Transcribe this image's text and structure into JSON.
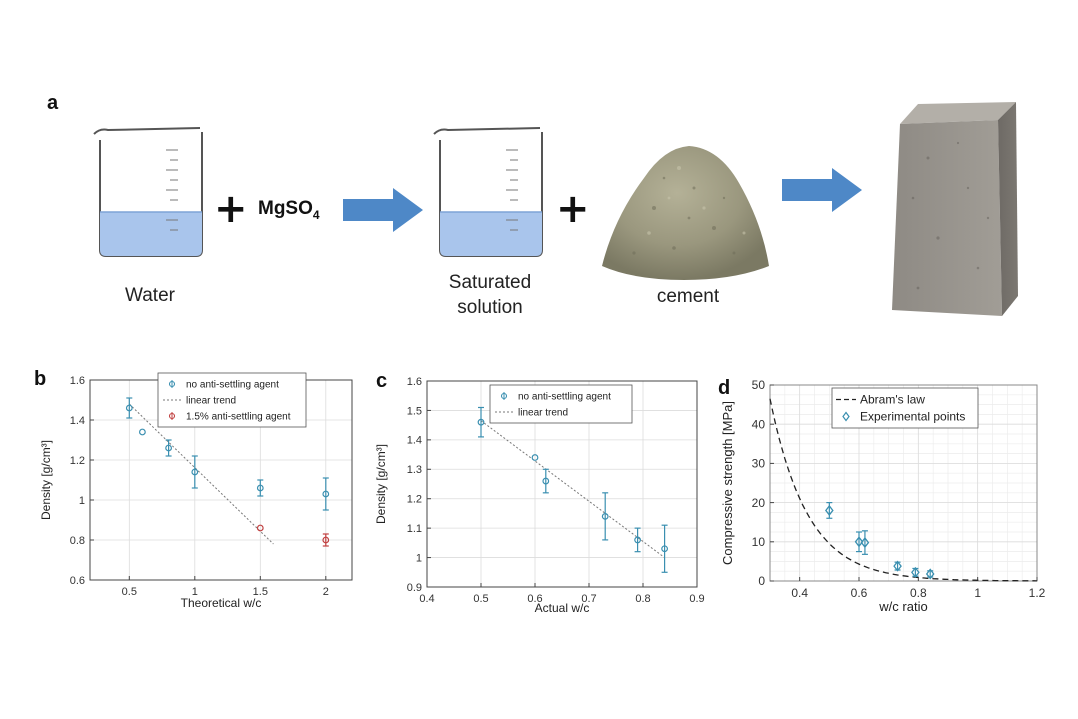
{
  "panel_a": {
    "letter": "a",
    "water_label": "Water",
    "reagent_main": "MgSO",
    "reagent_sub": "4",
    "plus_symbol": "+",
    "solution_label_line1": "Saturated",
    "solution_label_line2": "solution",
    "cement_label": "cement",
    "colors": {
      "arrow": "#4e88c7",
      "water": "#a9c5ec",
      "beaker_line": "#555555",
      "block": "#8b8780"
    },
    "icons": [
      "beaker-icon",
      "arrow-right-icon",
      "cement-powder-icon",
      "concrete-block-icon"
    ]
  },
  "chart_data": [
    {
      "letter": "b",
      "type": "scatter",
      "xlabel": "Theoretical w/c",
      "ylabel": "Density [g/cm³]",
      "xlim": [
        0.2,
        2.2
      ],
      "ylim": [
        0.6,
        1.6
      ],
      "xticks": [
        0.5,
        1,
        1.5,
        2
      ],
      "xtick_labels": [
        "0.5",
        "1",
        "1.5",
        "2"
      ],
      "yticks": [
        0.6,
        0.8,
        1.0,
        1.2,
        1.4,
        1.6
      ],
      "ytick_labels": [
        "0.6",
        "0.8",
        "1",
        "1.2",
        "1.4",
        "1.6"
      ],
      "grid": true,
      "legend_position": "top-right",
      "series": [
        {
          "name": "no anti-settling agent",
          "color": "#3a8fb0",
          "marker": "circle",
          "x": [
            0.5,
            0.6,
            0.8,
            1.0,
            1.5,
            2.0
          ],
          "y": [
            1.46,
            1.34,
            1.26,
            1.14,
            1.06,
            1.03
          ],
          "err": [
            0.05,
            0.0,
            0.04,
            0.08,
            0.04,
            0.08
          ]
        },
        {
          "name": "1.5% anti-settling agent",
          "color": "#c04040",
          "marker": "circle",
          "x": [
            1.5,
            2.0
          ],
          "y": [
            0.86,
            0.8
          ],
          "err": [
            0.0,
            0.03
          ]
        }
      ],
      "trend": {
        "name": "linear trend",
        "x": [
          0.5,
          1.6
        ],
        "y": [
          1.48,
          0.78
        ]
      }
    },
    {
      "letter": "c",
      "type": "scatter",
      "xlabel": "Actual w/c",
      "ylabel": "Density [g/cm³]",
      "xlim": [
        0.4,
        0.9
      ],
      "ylim": [
        0.9,
        1.6
      ],
      "xticks": [
        0.4,
        0.5,
        0.6,
        0.7,
        0.8,
        0.9
      ],
      "xtick_labels": [
        "0.4",
        "0.5",
        "0.6",
        "0.7",
        "0.8",
        "0.9"
      ],
      "yticks": [
        0.9,
        1.0,
        1.1,
        1.2,
        1.3,
        1.4,
        1.5,
        1.6
      ],
      "ytick_labels": [
        "0.9",
        "1",
        "1.1",
        "1.2",
        "1.3",
        "1.4",
        "1.5",
        "1.6"
      ],
      "grid": true,
      "legend_position": "top-right",
      "series": [
        {
          "name": "no anti-settling agent",
          "color": "#3a8fb0",
          "marker": "circle",
          "x": [
            0.5,
            0.6,
            0.62,
            0.73,
            0.79,
            0.84
          ],
          "y": [
            1.46,
            1.34,
            1.26,
            1.14,
            1.06,
            1.03
          ],
          "err": [
            0.05,
            0.0,
            0.04,
            0.08,
            0.04,
            0.08
          ]
        }
      ],
      "trend": {
        "name": "linear trend",
        "x": [
          0.5,
          0.84
        ],
        "y": [
          1.465,
          1.0
        ]
      }
    },
    {
      "letter": "d",
      "type": "line",
      "xlabel": "w/c ratio",
      "ylabel": "Compressive strength [MPa]",
      "xlim": [
        0.3,
        1.2
      ],
      "ylim": [
        0,
        50
      ],
      "xticks": [
        0.4,
        0.6,
        0.8,
        1.0,
        1.2
      ],
      "xtick_labels": [
        "0.4",
        "0.6",
        "0.8",
        "1",
        "1.2"
      ],
      "yticks": [
        0,
        10,
        20,
        30,
        40,
        50
      ],
      "ytick_labels": [
        "0",
        "10",
        "20",
        "30",
        "40",
        "50"
      ],
      "grid": true,
      "legend_position": "top-right",
      "curve": {
        "name": "Abram's law",
        "A": 500,
        "B": 2750
      },
      "series": [
        {
          "name": "Experimental points",
          "color": "#3a8fb0",
          "marker": "diamond",
          "x": [
            0.5,
            0.6,
            0.62,
            0.73,
            0.79,
            0.84
          ],
          "y": [
            18.0,
            10.0,
            9.8,
            3.8,
            2.2,
            1.8
          ],
          "err": [
            2.0,
            2.5,
            3.0,
            1.0,
            1.0,
            0.8
          ]
        }
      ]
    }
  ]
}
